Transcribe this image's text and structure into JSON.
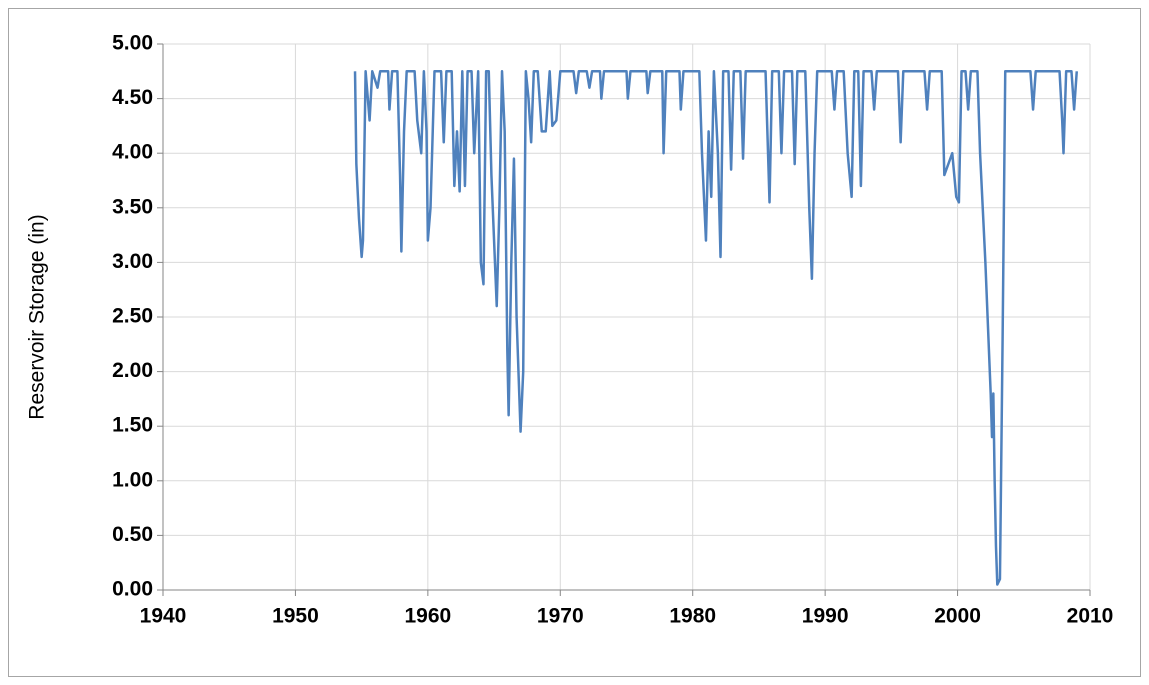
{
  "chart_data": {
    "type": "line",
    "ylabel": "Reservoir Storage (in)",
    "color": "#4f81bd",
    "grid": true,
    "xlim": [
      1940,
      2010
    ],
    "xticks": [
      1940,
      1950,
      1960,
      1970,
      1980,
      1990,
      2000,
      2010
    ],
    "ylim": [
      0,
      5
    ],
    "yticks": [
      {
        "value": 0,
        "label": "0.00"
      },
      {
        "value": 0.5,
        "label": "0.50"
      },
      {
        "value": 1,
        "label": "1.00"
      },
      {
        "value": 1.5,
        "label": "1.50"
      },
      {
        "value": 2,
        "label": "2.00"
      },
      {
        "value": 2.5,
        "label": "2.50"
      },
      {
        "value": 3,
        "label": "3.00"
      },
      {
        "value": 3.5,
        "label": "3.50"
      },
      {
        "value": 4,
        "label": "4.00"
      },
      {
        "value": 4.5,
        "label": "4.50"
      },
      {
        "value": 5,
        "label": "5.00"
      }
    ],
    "x": [
      1954.5,
      1954.6,
      1954.8,
      1955.0,
      1955.1,
      1955.3,
      1955.6,
      1955.8,
      1956.2,
      1956.4,
      1957.0,
      1957.1,
      1957.3,
      1957.7,
      1957.9,
      1958.0,
      1958.2,
      1958.4,
      1959.0,
      1959.2,
      1959.5,
      1959.7,
      1959.9,
      1960.0,
      1960.2,
      1960.5,
      1961.0,
      1961.2,
      1961.4,
      1961.8,
      1962.0,
      1962.2,
      1962.4,
      1962.6,
      1962.8,
      1963.0,
      1963.3,
      1963.5,
      1963.8,
      1964.0,
      1964.2,
      1964.4,
      1964.6,
      1964.8,
      1965.0,
      1965.2,
      1965.4,
      1965.6,
      1965.8,
      1966.0,
      1966.1,
      1966.3,
      1966.5,
      1966.7,
      1966.9,
      1967.0,
      1967.2,
      1967.4,
      1967.6,
      1967.8,
      1968.0,
      1968.3,
      1968.6,
      1968.9,
      1969.2,
      1969.4,
      1969.7,
      1970.0,
      1971.0,
      1971.2,
      1971.4,
      1972.0,
      1972.2,
      1972.4,
      1973.0,
      1973.1,
      1973.3,
      1975.0,
      1975.1,
      1975.3,
      1976.5,
      1976.6,
      1976.8,
      1977.7,
      1977.8,
      1978.0,
      1979.0,
      1979.1,
      1979.3,
      1980.5,
      1980.7,
      1981.0,
      1981.2,
      1981.4,
      1981.6,
      1981.9,
      1982.1,
      1982.3,
      1982.7,
      1982.9,
      1983.1,
      1983.6,
      1983.8,
      1984.0,
      1985.5,
      1985.8,
      1986.0,
      1986.5,
      1986.7,
      1986.9,
      1987.5,
      1987.7,
      1987.9,
      1988.5,
      1988.8,
      1989.0,
      1989.2,
      1989.4,
      1990.5,
      1990.7,
      1990.9,
      1991.4,
      1991.7,
      1992.0,
      1992.2,
      1992.5,
      1992.7,
      1992.9,
      1993.5,
      1993.7,
      1993.9,
      1995.5,
      1995.7,
      1995.9,
      1997.5,
      1997.7,
      1997.9,
      1998.8,
      1999.0,
      1999.3,
      1999.6,
      1999.9,
      2000.1,
      2000.3,
      2000.6,
      2000.8,
      2001.0,
      2001.5,
      2001.7,
      2001.9,
      2002.1,
      2002.3,
      2002.5,
      2002.6,
      2002.7,
      2002.8,
      2002.9,
      2003.0,
      2003.2,
      2003.4,
      2003.6,
      2005.5,
      2005.7,
      2005.9,
      2007.7,
      2007.9,
      2008.0,
      2008.2,
      2008.6,
      2008.8,
      2009.0
    ],
    "values": [
      4.75,
      3.9,
      3.4,
      3.05,
      3.2,
      4.75,
      4.3,
      4.75,
      4.6,
      4.75,
      4.75,
      4.4,
      4.75,
      4.75,
      3.8,
      3.1,
      4.2,
      4.75,
      4.75,
      4.3,
      4.0,
      4.75,
      4.2,
      3.2,
      3.5,
      4.75,
      4.75,
      4.1,
      4.75,
      4.75,
      3.7,
      4.2,
      3.65,
      4.75,
      3.7,
      4.75,
      4.75,
      4.0,
      4.75,
      3.0,
      2.8,
      4.75,
      4.75,
      3.8,
      3.2,
      2.6,
      3.5,
      4.75,
      4.2,
      2.2,
      1.6,
      3.0,
      3.95,
      2.5,
      1.8,
      1.45,
      2.0,
      4.75,
      4.5,
      4.1,
      4.75,
      4.75,
      4.2,
      4.2,
      4.75,
      4.25,
      4.3,
      4.75,
      4.75,
      4.55,
      4.75,
      4.75,
      4.6,
      4.75,
      4.75,
      4.5,
      4.75,
      4.75,
      4.5,
      4.75,
      4.75,
      4.55,
      4.75,
      4.75,
      4.0,
      4.75,
      4.75,
      4.4,
      4.75,
      4.75,
      4.0,
      3.2,
      4.2,
      3.6,
      4.75,
      4.0,
      3.05,
      4.75,
      4.75,
      3.85,
      4.75,
      4.75,
      3.95,
      4.75,
      4.75,
      3.55,
      4.75,
      4.75,
      4.0,
      4.75,
      4.75,
      3.9,
      4.75,
      4.75,
      3.5,
      2.85,
      4.0,
      4.75,
      4.75,
      4.4,
      4.75,
      4.75,
      4.0,
      3.6,
      4.75,
      4.75,
      3.7,
      4.75,
      4.75,
      4.4,
      4.75,
      4.75,
      4.1,
      4.75,
      4.75,
      4.4,
      4.75,
      4.75,
      3.8,
      3.9,
      4.0,
      3.6,
      3.55,
      4.75,
      4.75,
      4.4,
      4.75,
      4.75,
      4.0,
      3.5,
      3.0,
      2.4,
      1.8,
      1.4,
      1.8,
      1.0,
      0.4,
      0.05,
      0.1,
      2.3,
      4.75,
      4.75,
      4.4,
      4.75,
      4.75,
      4.3,
      4.0,
      4.75,
      4.75,
      4.4,
      4.75
    ]
  }
}
